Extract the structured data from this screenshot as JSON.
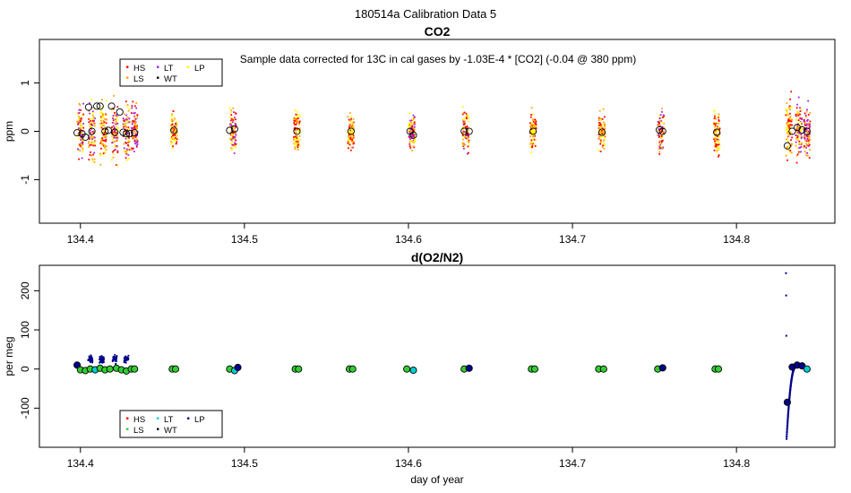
{
  "figure": {
    "suptitle": "180514a   Calibration Data 5"
  },
  "legend_keys": [
    "HS",
    "LS",
    "LT",
    "WT",
    "LP"
  ],
  "chart_data": [
    {
      "type": "scatter",
      "title": "CO2",
      "annotation": "Sample data corrected for 13C in cal gases by -1.03E-4 * [CO2] (-0.04 @ 380 ppm)",
      "xlabel": "",
      "ylabel": "ppm",
      "xlim": [
        134.375,
        134.86
      ],
      "ylim": [
        -1.9,
        1.9
      ],
      "xticks": [
        134.4,
        134.5,
        134.6,
        134.7,
        134.8
      ],
      "xtick_labels": [
        "134.4",
        "134.5",
        "134.6",
        "134.7",
        "134.8"
      ],
      "yticks": [
        -1,
        0,
        1
      ],
      "ytick_labels": [
        "-1",
        "0",
        "1"
      ],
      "grid": false,
      "legend_position": "top-left",
      "legend": [
        {
          "name": "HS",
          "color": "#ff0000",
          "marker": "dot"
        },
        {
          "name": "LS",
          "color": "#ffa500",
          "marker": "dot"
        },
        {
          "name": "LT",
          "color": "#a020f0",
          "marker": "dot"
        },
        {
          "name": "WT",
          "color": "#000000",
          "marker": "dot"
        },
        {
          "name": "LP",
          "color": "#ffff00",
          "marker": "dot"
        }
      ],
      "sample_clusters": [
        {
          "x": 134.4,
          "spread": 0.9,
          "mix": [
            "LT",
            "HS",
            "LP",
            "LS"
          ]
        },
        {
          "x": 134.407,
          "spread": 1.0,
          "mix": [
            "LP",
            "HS",
            "LS",
            "LT"
          ]
        },
        {
          "x": 134.414,
          "spread": 1.1,
          "mix": [
            "LP",
            "HS",
            "LS"
          ]
        },
        {
          "x": 134.421,
          "spread": 1.0,
          "mix": [
            "LP",
            "HS",
            "LT",
            "LS"
          ]
        },
        {
          "x": 134.428,
          "spread": 1.0,
          "mix": [
            "HS",
            "LP",
            "LT",
            "LS"
          ]
        },
        {
          "x": 134.433,
          "spread": 0.9,
          "mix": [
            "LT",
            "HS",
            "LS"
          ]
        },
        {
          "x": 134.457,
          "spread": 0.6,
          "mix": [
            "HS",
            "LS",
            "LP"
          ]
        },
        {
          "x": 134.493,
          "spread": 0.7,
          "mix": [
            "HS",
            "LT",
            "LS",
            "LP"
          ]
        },
        {
          "x": 134.532,
          "spread": 0.7,
          "mix": [
            "LS",
            "HS",
            "LP"
          ]
        },
        {
          "x": 134.565,
          "spread": 0.6,
          "mix": [
            "HS",
            "LS",
            "LP"
          ]
        },
        {
          "x": 134.602,
          "spread": 0.7,
          "mix": [
            "HS",
            "LS",
            "LT",
            "LP"
          ]
        },
        {
          "x": 134.635,
          "spread": 0.8,
          "mix": [
            "LP",
            "LS",
            "LT",
            "HS"
          ]
        },
        {
          "x": 134.676,
          "spread": 0.6,
          "mix": [
            "LS",
            "HS",
            "LP"
          ]
        },
        {
          "x": 134.718,
          "spread": 0.6,
          "mix": [
            "LP",
            "LS",
            "HS"
          ]
        },
        {
          "x": 134.754,
          "spread": 0.7,
          "mix": [
            "LT",
            "LS",
            "HS",
            "LP"
          ]
        },
        {
          "x": 134.788,
          "spread": 0.8,
          "mix": [
            "HS",
            "LS",
            "LP"
          ]
        },
        {
          "x": 134.832,
          "spread": 1.2,
          "mix": [
            "LP",
            "LS",
            "HS"
          ]
        },
        {
          "x": 134.838,
          "spread": 0.9,
          "mix": [
            "LP",
            "LT",
            "LS",
            "HS"
          ]
        },
        {
          "x": 134.843,
          "spread": 0.8,
          "mix": [
            "LT",
            "HS",
            "LS"
          ]
        }
      ],
      "mean_markers": [
        {
          "x": 134.398,
          "y": -0.03
        },
        {
          "x": 134.401,
          "y": -0.05
        },
        {
          "x": 134.403,
          "y": -0.12
        },
        {
          "x": 134.405,
          "y": 0.5
        },
        {
          "x": 134.407,
          "y": 0.0
        },
        {
          "x": 134.41,
          "y": 0.52
        },
        {
          "x": 134.412,
          "y": 0.52
        },
        {
          "x": 134.415,
          "y": 0.0
        },
        {
          "x": 134.417,
          "y": 0.02
        },
        {
          "x": 134.419,
          "y": 0.52
        },
        {
          "x": 134.421,
          "y": -0.02
        },
        {
          "x": 134.424,
          "y": 0.4
        },
        {
          "x": 134.426,
          "y": -0.02
        },
        {
          "x": 134.428,
          "y": -0.05
        },
        {
          "x": 134.43,
          "y": -0.05
        },
        {
          "x": 134.433,
          "y": -0.03
        },
        {
          "x": 134.457,
          "y": 0.02
        },
        {
          "x": 134.491,
          "y": 0.02
        },
        {
          "x": 134.494,
          "y": 0.05
        },
        {
          "x": 134.532,
          "y": 0.0
        },
        {
          "x": 134.565,
          "y": 0.0
        },
        {
          "x": 134.601,
          "y": 0.0
        },
        {
          "x": 134.603,
          "y": -0.08
        },
        {
          "x": 134.634,
          "y": 0.0
        },
        {
          "x": 134.637,
          "y": 0.0
        },
        {
          "x": 134.676,
          "y": 0.0
        },
        {
          "x": 134.718,
          "y": -0.02
        },
        {
          "x": 134.753,
          "y": 0.03
        },
        {
          "x": 134.755,
          "y": 0.0
        },
        {
          "x": 134.788,
          "y": -0.02
        },
        {
          "x": 134.831,
          "y": -0.3
        },
        {
          "x": 134.834,
          "y": 0.0
        },
        {
          "x": 134.837,
          "y": 0.08
        },
        {
          "x": 134.84,
          "y": 0.03
        },
        {
          "x": 134.843,
          "y": 0.0
        }
      ]
    },
    {
      "type": "scatter",
      "title": "d(O2/N2)",
      "xlabel": "day of year",
      "ylabel": "per meg",
      "xlim": [
        134.375,
        134.86
      ],
      "ylim": [
        -200,
        265
      ],
      "xticks": [
        134.4,
        134.5,
        134.6,
        134.7,
        134.8
      ],
      "xtick_labels": [
        "134.4",
        "134.5",
        "134.6",
        "134.7",
        "134.8"
      ],
      "yticks": [
        -100,
        0,
        100,
        200
      ],
      "ytick_labels": [
        "-100",
        "0",
        "100",
        "200"
      ],
      "grid": false,
      "legend_position": "bottom-left",
      "legend": [
        {
          "name": "HS",
          "color": "#ff0000",
          "marker": "dot"
        },
        {
          "name": "LS",
          "color": "#32cd32",
          "marker": "dot"
        },
        {
          "name": "LT",
          "color": "#00ced1",
          "marker": "dot"
        },
        {
          "name": "WT",
          "color": "#000000",
          "marker": "dot"
        },
        {
          "name": "LP",
          "color": "#00008b",
          "marker": "dot"
        }
      ],
      "sample_clusters": [
        {
          "x": 134.398,
          "y": 10,
          "spread": 3,
          "mix": [
            "LP"
          ]
        },
        {
          "x": 134.406,
          "y": 25,
          "spread": 10,
          "mix": [
            "LP"
          ]
        },
        {
          "x": 134.413,
          "y": 25,
          "spread": 10,
          "mix": [
            "LP"
          ]
        },
        {
          "x": 134.421,
          "y": 25,
          "spread": 10,
          "mix": [
            "LP"
          ]
        },
        {
          "x": 134.428,
          "y": 25,
          "spread": 8,
          "mix": [
            "LP"
          ]
        }
      ],
      "ramp_series": {
        "name": "LP",
        "color": "#00008b",
        "x_start": 134.8305,
        "x_end": 134.836,
        "y_start": -178,
        "y_end": 5
      },
      "outliers": [
        {
          "x": 134.8302,
          "y": 245
        },
        {
          "x": 134.8303,
          "y": 188
        },
        {
          "x": 134.8304,
          "y": 85
        }
      ],
      "mean_markers": [
        {
          "x": 134.398,
          "y": 10,
          "color": "#00008b"
        },
        {
          "x": 134.4,
          "y": -2,
          "color": "#32cd32"
        },
        {
          "x": 134.403,
          "y": -4,
          "color": "#32cd32"
        },
        {
          "x": 134.406,
          "y": 0,
          "color": "#32cd32"
        },
        {
          "x": 134.409,
          "y": -2,
          "color": "#00ced1"
        },
        {
          "x": 134.412,
          "y": 2,
          "color": "#32cd32"
        },
        {
          "x": 134.415,
          "y": -2,
          "color": "#32cd32"
        },
        {
          "x": 134.418,
          "y": 0,
          "color": "#32cd32"
        },
        {
          "x": 134.422,
          "y": 2,
          "color": "#32cd32"
        },
        {
          "x": 134.425,
          "y": -2,
          "color": "#32cd32"
        },
        {
          "x": 134.428,
          "y": -5,
          "color": "#32cd32"
        },
        {
          "x": 134.431,
          "y": 0,
          "color": "#32cd32"
        },
        {
          "x": 134.433,
          "y": 0,
          "color": "#32cd32"
        },
        {
          "x": 134.456,
          "y": 0,
          "color": "#32cd32"
        },
        {
          "x": 134.458,
          "y": 0,
          "color": "#32cd32"
        },
        {
          "x": 134.491,
          "y": 0,
          "color": "#32cd32"
        },
        {
          "x": 134.494,
          "y": -4,
          "color": "#00ced1"
        },
        {
          "x": 134.496,
          "y": 4,
          "color": "#00008b"
        },
        {
          "x": 134.531,
          "y": 0,
          "color": "#32cd32"
        },
        {
          "x": 134.533,
          "y": 0,
          "color": "#32cd32"
        },
        {
          "x": 134.564,
          "y": 0,
          "color": "#32cd32"
        },
        {
          "x": 134.566,
          "y": 0,
          "color": "#32cd32"
        },
        {
          "x": 134.599,
          "y": 0,
          "color": "#32cd32"
        },
        {
          "x": 134.603,
          "y": -3,
          "color": "#00ced1"
        },
        {
          "x": 134.634,
          "y": 0,
          "color": "#32cd32"
        },
        {
          "x": 134.637,
          "y": 2,
          "color": "#00008b"
        },
        {
          "x": 134.675,
          "y": 0,
          "color": "#32cd32"
        },
        {
          "x": 134.677,
          "y": 0,
          "color": "#32cd32"
        },
        {
          "x": 134.716,
          "y": 0,
          "color": "#32cd32"
        },
        {
          "x": 134.719,
          "y": 0,
          "color": "#32cd32"
        },
        {
          "x": 134.752,
          "y": 0,
          "color": "#32cd32"
        },
        {
          "x": 134.755,
          "y": 3,
          "color": "#00008b"
        },
        {
          "x": 134.787,
          "y": 0,
          "color": "#32cd32"
        },
        {
          "x": 134.789,
          "y": 0,
          "color": "#32cd32"
        },
        {
          "x": 134.831,
          "y": -85,
          "color": "#00008b"
        },
        {
          "x": 134.834,
          "y": 5,
          "color": "#00008b"
        },
        {
          "x": 134.837,
          "y": 10,
          "color": "#00008b"
        },
        {
          "x": 134.84,
          "y": 8,
          "color": "#00008b"
        },
        {
          "x": 134.843,
          "y": 0,
          "color": "#00ced1"
        }
      ]
    }
  ]
}
